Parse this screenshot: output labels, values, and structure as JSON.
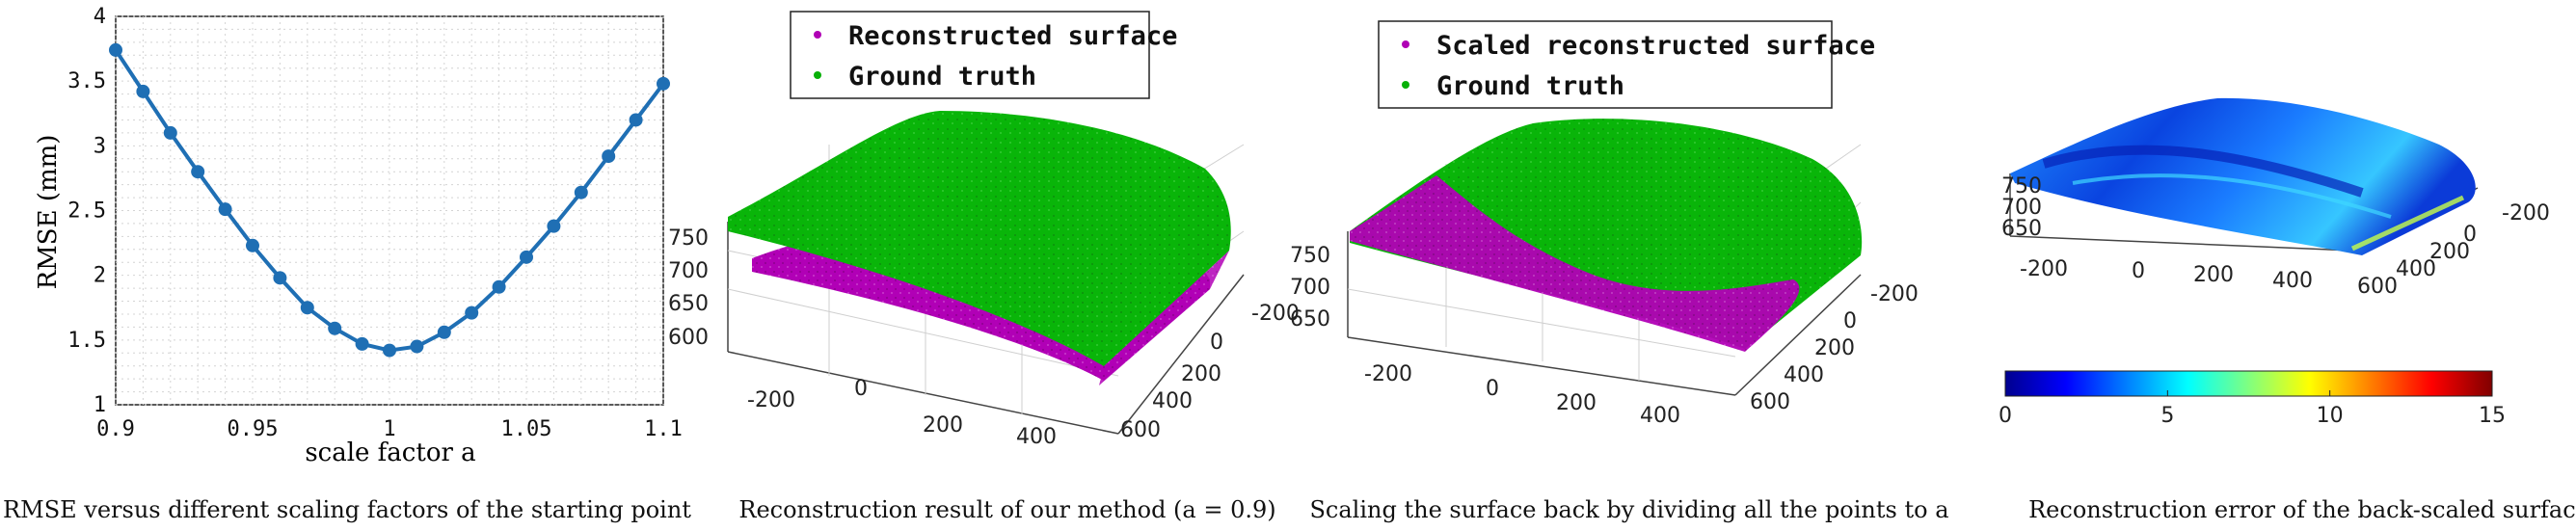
{
  "colors": {
    "line": "#1f6fb4",
    "magenta": "#b000b5",
    "green": "#08b008",
    "green_dark": "#067a06"
  },
  "panel1": {
    "caption": "RMSE versus different scaling factors of the starting point",
    "chart_data": {
      "type": "line",
      "xlabel": "scale factor a",
      "ylabel": "RMSE (mm)",
      "xlim": [
        0.9,
        1.1
      ],
      "ylim": [
        1,
        4
      ],
      "grid": true,
      "x_ticks": [
        "0.9",
        "0.95",
        "1",
        "1.05",
        "1.1"
      ],
      "y_ticks": [
        "1",
        "1.5",
        "2",
        "2.5",
        "3",
        "3.5",
        "4"
      ],
      "x": [
        0.9,
        0.91,
        0.92,
        0.93,
        0.94,
        0.95,
        0.96,
        0.97,
        0.98,
        0.99,
        1.0,
        1.01,
        1.02,
        1.03,
        1.04,
        1.05,
        1.06,
        1.07,
        1.08,
        1.09,
        1.1
      ],
      "y": [
        3.74,
        3.42,
        3.1,
        2.8,
        2.51,
        2.23,
        1.98,
        1.75,
        1.59,
        1.47,
        1.42,
        1.45,
        1.56,
        1.71,
        1.91,
        2.14,
        2.38,
        2.64,
        2.92,
        3.2,
        3.48
      ]
    }
  },
  "panel2": {
    "caption": "Reconstruction result of our method (a = 0.9)",
    "legend": [
      "Reconstructed surface",
      "Ground truth"
    ],
    "axis_z": [
      "750",
      "700",
      "650",
      "600"
    ],
    "axis_x": [
      "-200",
      "0",
      "200",
      "400"
    ],
    "axis_y": [
      "-200",
      "0",
      "200",
      "400",
      "600"
    ]
  },
  "panel3": {
    "caption": "Scaling the surface back by dividing all the points to a",
    "legend": [
      "Scaled reconstructed surface",
      "Ground truth"
    ],
    "axis_z": [
      "750",
      "700",
      "650"
    ],
    "axis_x": [
      "-200",
      "0",
      "200",
      "400"
    ],
    "axis_y": [
      "-200",
      "0",
      "200",
      "400",
      "600"
    ]
  },
  "panel4": {
    "caption": "Reconstruction error of the back-scaled surface",
    "axis_z": [
      "750",
      "700",
      "650"
    ],
    "axis_x": [
      "-200",
      "0",
      "200",
      "400"
    ],
    "axis_y": [
      "-200",
      "0",
      "200",
      "400",
      "600"
    ],
    "colorbar_ticks": [
      "0",
      "5",
      "10",
      "15"
    ],
    "colorbar_range": [
      0,
      15
    ]
  }
}
